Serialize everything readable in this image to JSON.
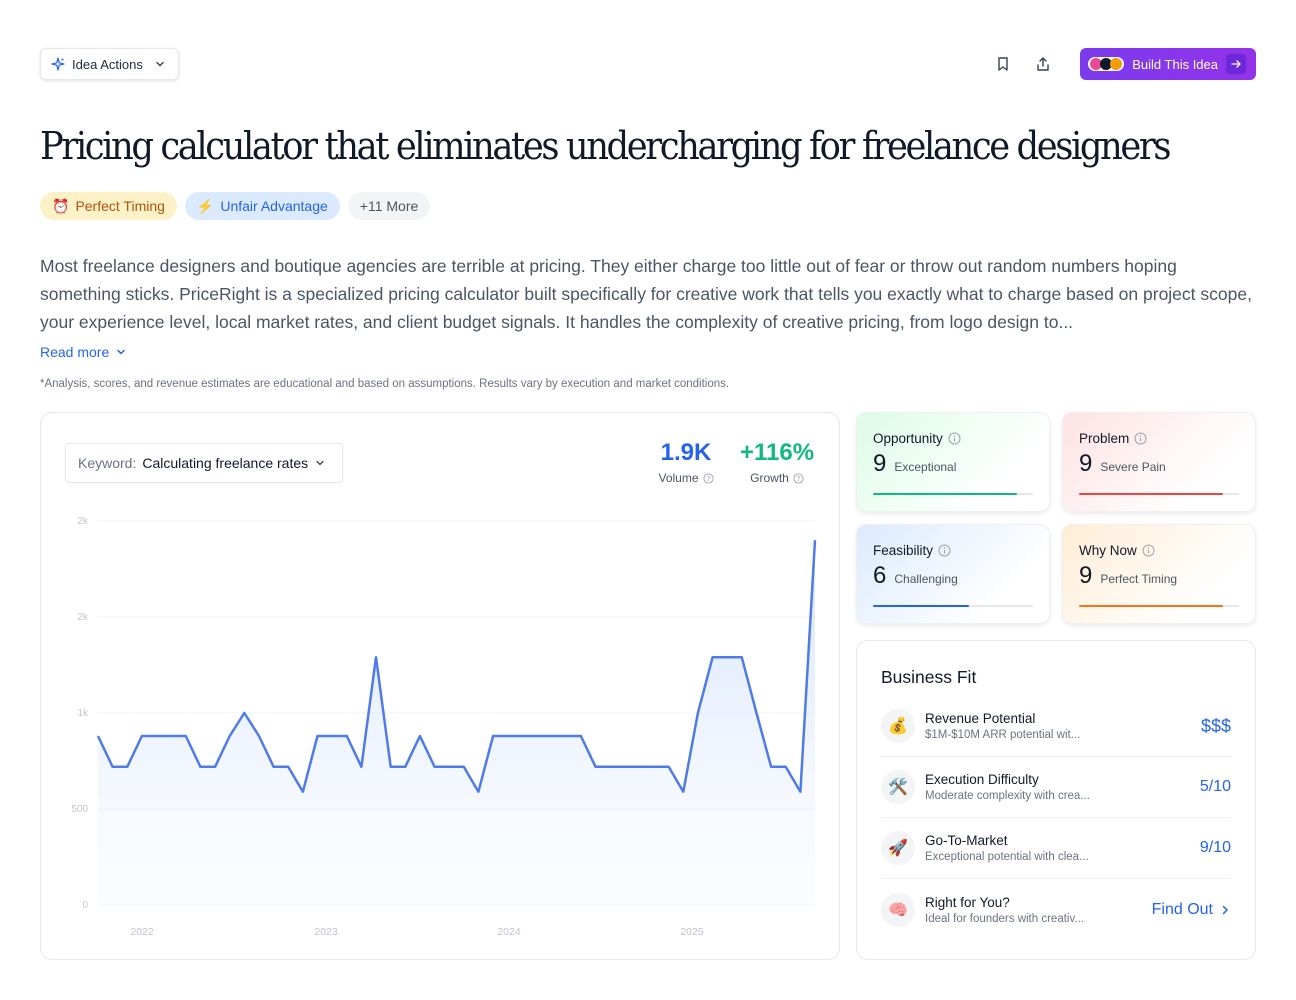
{
  "header": {
    "idea_actions_label": "Idea Actions",
    "build_label": "Build This Idea"
  },
  "title": "Pricing calculator that eliminates undercharging for freelance designers",
  "tags": {
    "timing": {
      "emoji": "⏰",
      "label": "Perfect Timing"
    },
    "advantage": {
      "emoji": "⚡",
      "label": "Unfair Advantage"
    },
    "more": "+11 More"
  },
  "description": "Most freelance designers and boutique agencies are terrible at pricing. They either charge too little out of fear or throw out random numbers hoping something sticks. PriceRight is a specialized pricing calculator built specifically for creative work that tells you exactly what to charge based on project scope, your experience level, local market rates, and client budget signals. It handles the complexity of creative pricing, from logo design to...",
  "read_more": "Read more",
  "disclaimer": "*Analysis, scores, and revenue estimates are educational and based on assumptions. Results vary by execution and market conditions.",
  "keyword": {
    "label": "Keyword:",
    "value": "Calculating freelance rates"
  },
  "stats": {
    "volume": {
      "value": "1.9K",
      "label": "Volume"
    },
    "growth": {
      "value": "+116%",
      "label": "Growth"
    }
  },
  "chart_data": {
    "type": "area",
    "y_tick_labels": [
      "0",
      "500",
      "1k",
      "2k",
      "2k"
    ],
    "y_ticks": [
      0,
      500,
      1000,
      1500,
      2000
    ],
    "ylim": [
      0,
      2000
    ],
    "x_tick_labels": [
      "2022",
      "2023",
      "2024",
      "2025"
    ],
    "series_color": "#4f7be8",
    "values": [
      880,
      720,
      720,
      880,
      880,
      880,
      880,
      720,
      720,
      880,
      1000,
      880,
      720,
      720,
      590,
      880,
      880,
      880,
      720,
      1290,
      720,
      720,
      880,
      720,
      720,
      720,
      590,
      880,
      880,
      880,
      880,
      880,
      880,
      880,
      720,
      720,
      720,
      720,
      720,
      720,
      590,
      1000,
      1290,
      1290,
      1290,
      1000,
      720,
      720,
      590,
      1900
    ]
  },
  "scores": {
    "opportunity": {
      "label": "Opportunity",
      "value": "9",
      "desc": "Exceptional",
      "fraction": 0.9,
      "color": "#10b981"
    },
    "problem": {
      "label": "Problem",
      "value": "9",
      "desc": "Severe Pain",
      "fraction": 0.9,
      "color": "#ef4444"
    },
    "feasibility": {
      "label": "Feasibility",
      "value": "6",
      "desc": "Challenging",
      "fraction": 0.6,
      "color": "#2563eb"
    },
    "why_now": {
      "label": "Why Now",
      "value": "9",
      "desc": "Perfect Timing",
      "fraction": 0.9,
      "color": "#f97316"
    }
  },
  "business_fit": {
    "title": "Business Fit",
    "items": [
      {
        "emoji": "💰",
        "name": "Revenue Potential",
        "sub": "$1M-$10M ARR potential wit...",
        "score": "$$$"
      },
      {
        "emoji": "🛠️",
        "name": "Execution Difficulty",
        "sub": "Moderate complexity with crea...",
        "score": "5/10"
      },
      {
        "emoji": "🚀",
        "name": "Go-To-Market",
        "sub": "Exceptional potential with clea...",
        "score": "9/10"
      },
      {
        "emoji": "🧠",
        "name": "Right for You?",
        "sub": "Ideal for founders with creativ...",
        "score": "Find Out"
      }
    ]
  }
}
